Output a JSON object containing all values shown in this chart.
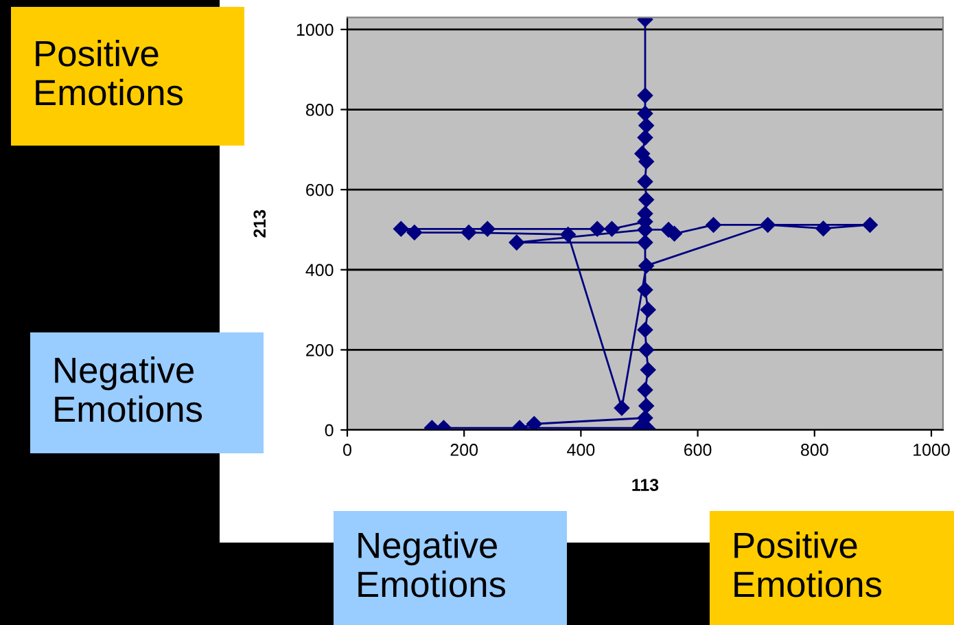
{
  "chart_data": {
    "type": "line",
    "xlabel": "113",
    "ylabel": "213",
    "xlim": [
      0,
      1020
    ],
    "ylim": [
      0,
      1030
    ],
    "xticks": [
      0,
      200,
      400,
      600,
      800,
      1000
    ],
    "yticks": [
      0,
      200,
      400,
      600,
      800,
      1000
    ],
    "grid": "y",
    "marker": "diamond",
    "line_style": "solid",
    "legend": false,
    "series": [
      {
        "color": "#000080",
        "x": [
          510,
          510,
          510,
          512,
          510,
          505,
          512,
          510,
          512,
          510,
          510,
          453,
          428,
          240,
          92,
          115,
          208,
          378,
          470,
          512,
          720,
          815,
          895,
          627,
          560,
          550,
          510,
          290,
          510,
          510,
          515,
          510,
          512,
          515,
          510,
          512,
          510,
          320,
          295,
          165,
          145,
          500,
          515
        ],
        "values": [
          1025,
          835,
          790,
          760,
          730,
          690,
          670,
          620,
          575,
          540,
          520,
          502,
          502,
          502,
          502,
          493,
          493,
          488,
          55,
          410,
          512,
          503,
          512,
          512,
          490,
          500,
          500,
          468,
          468,
          350,
          300,
          250,
          200,
          150,
          100,
          60,
          30,
          15,
          5,
          5,
          5,
          5,
          2
        ]
      }
    ],
    "annotations": [
      "Positive\nEmotions",
      "Negative\nEmotions",
      "Negative\nEmotions",
      "Positive\nEmotions"
    ]
  }
}
